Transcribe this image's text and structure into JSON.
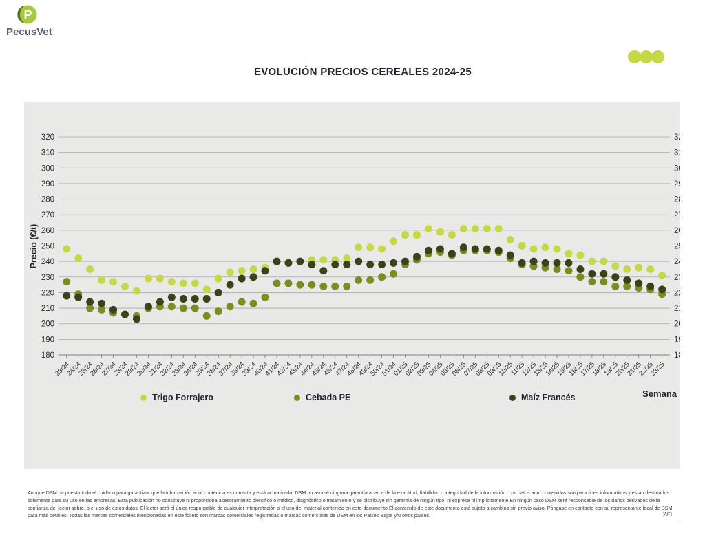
{
  "header": {
    "logo": {
      "text": "PecusVet",
      "monogram": "P"
    },
    "title": "EVOLUCIÓN PRECIOS CEREALES 2024-25"
  },
  "theme": {
    "accent": "#c6d845",
    "panel_bg": "#e9e9e8",
    "grid_color": "#a9a9a9",
    "axis_color": "#7f7f7f",
    "logo_dark_green": "#5c7018",
    "logo_bright_green": "#a5c93f",
    "logo_text_color": "#57606e"
  },
  "chart_data": {
    "type": "scatter",
    "title": "EVOLUCIÓN PRECIOS CEREALES 2024-25",
    "xlabel": "Semana",
    "ylabel": "Precio (€/t)",
    "ylim": [
      180,
      320
    ],
    "ytick_step": 10,
    "grid": true,
    "legend_position": "bottom",
    "categories": [
      "23/24",
      "24/24",
      "25/24",
      "26/24",
      "27/24",
      "28/24",
      "29/24",
      "30/24",
      "31/24",
      "32/24",
      "33/24",
      "34/24",
      "35/24",
      "36/24",
      "37/24",
      "38/24",
      "39/24",
      "40/24",
      "41/24",
      "42/24",
      "43/24",
      "44/24",
      "45/24",
      "46/24",
      "47/24",
      "48/24",
      "49/24",
      "50/24",
      "51/24",
      "01/25",
      "02/25",
      "03/25",
      "04/25",
      "05/25",
      "06/25",
      "07/25",
      "08/25",
      "09/25",
      "10/25",
      "11/25",
      "12/25",
      "13/25",
      "14/25",
      "15/25",
      "16/25",
      "17/25",
      "18/25",
      "19/25",
      "20/25",
      "21/25",
      "22/25",
      "23/25"
    ],
    "series": [
      {
        "name": "Trigo Forrajero",
        "color": "#c6d845",
        "values": [
          248,
          242,
          235,
          228,
          227,
          224,
          221,
          229,
          229,
          227,
          226,
          226,
          222,
          229,
          233,
          234,
          235,
          236,
          240,
          239,
          240,
          241,
          241,
          241,
          242,
          249,
          249,
          248,
          253,
          257,
          257,
          261,
          259,
          257,
          261,
          261,
          261,
          261,
          254,
          250,
          248,
          249,
          248,
          245,
          244,
          240,
          240,
          237,
          235,
          236,
          235,
          231
        ]
      },
      {
        "name": "Cebada PE",
        "color": "#7d8c1f",
        "values": [
          227,
          219,
          210,
          209,
          207,
          206,
          205,
          210,
          211,
          211,
          210,
          210,
          205,
          208,
          211,
          214,
          213,
          217,
          226,
          226,
          225,
          225,
          224,
          224,
          224,
          228,
          228,
          230,
          232,
          238,
          241,
          245,
          246,
          244,
          247,
          247,
          247,
          246,
          242,
          238,
          237,
          236,
          235,
          234,
          230,
          227,
          227,
          224,
          224,
          223,
          222,
          219
        ]
      },
      {
        "name": "Maíz Francés",
        "color": "#3a421a",
        "values": [
          218,
          217,
          214,
          213,
          209,
          206,
          203,
          211,
          214,
          217,
          216,
          216,
          216,
          220,
          225,
          229,
          230,
          234,
          240,
          239,
          240,
          238,
          234,
          238,
          238,
          240,
          238,
          238,
          239,
          240,
          243,
          247,
          248,
          245,
          249,
          248,
          248,
          247,
          244,
          239,
          240,
          239,
          239,
          239,
          235,
          232,
          232,
          230,
          228,
          226,
          224,
          222
        ]
      }
    ]
  },
  "footer": {
    "disclaimer": "Aunque DSM ha puesto todo el cuidado para garantizar que la información aquí contenida es correcta y está actualizada, DSM no asume ninguna garantía acerca de la exactitud, fiabilidad o integridad de la información. Los datos aquí contenidos son para fines informativos y están destinados solamente para su uso en las empresas. Esta publicación no constituye ni proporciona asesoramiento científico o médico, diagnóstico o tratamiento y se distribuye sin garantía de ningún tipo, ni expresa ni implícitamente En ningún caso DSM será responsable de los daños derivados de la confianza del lector sobre, o el uso de estos datos. El lector será el único responsable de cualquier interpretación o el uso del material contenido en este documento El contenido de este documento está sujeto a cambios sin previo aviso. Póngase en contacto con su representante local de DSM para más detalles. Todas las marcas comerciales mencionadas en este folleto son marcas comerciales registradas o marcas comerciales de DSM en los Países Bajos y/u otros países.",
    "page": "2/3"
  }
}
